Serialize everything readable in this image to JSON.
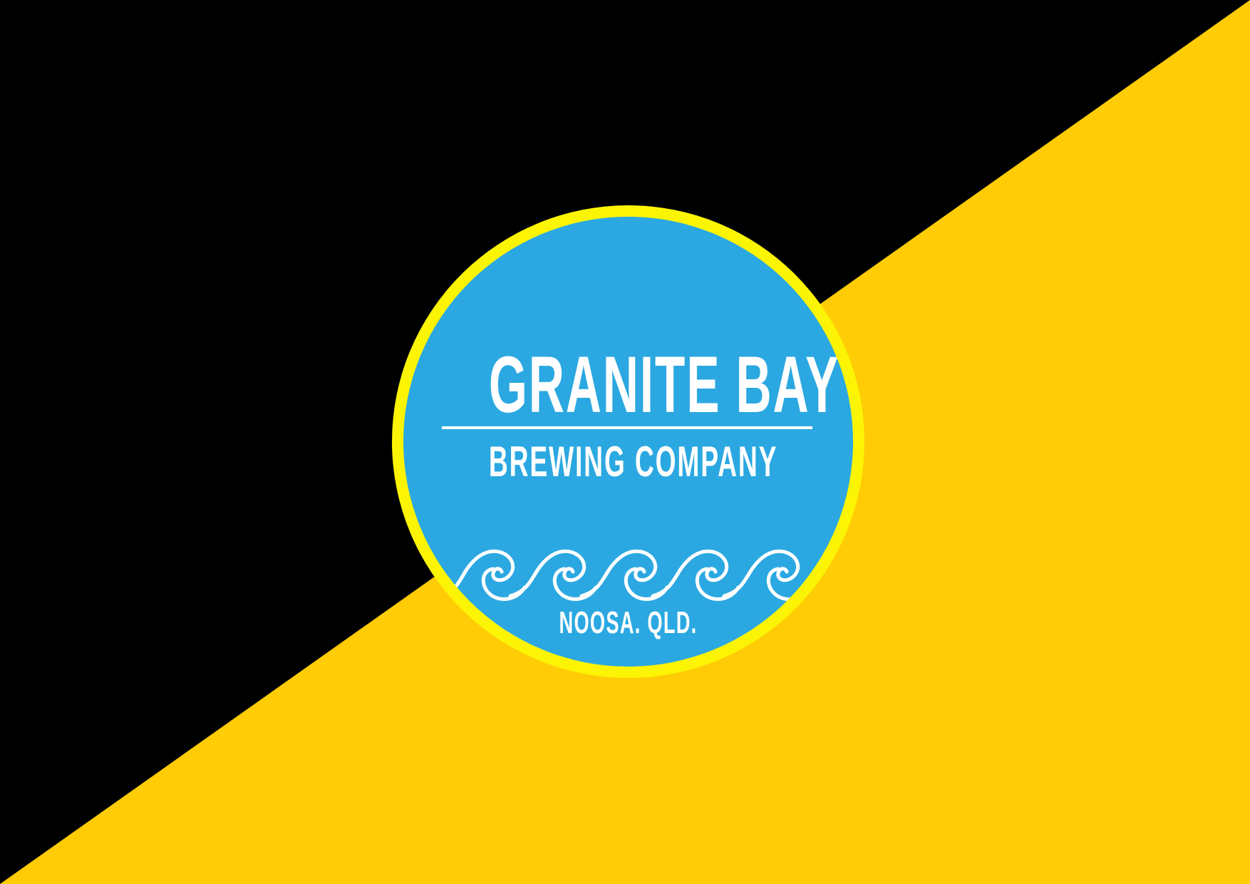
{
  "logo": {
    "title": "GRANITE BAY",
    "subtitle": "BREWING COMPANY",
    "location": "NOOSA. QLD.",
    "icon": "waves-icon"
  },
  "colors": {
    "background_dark": "#000000",
    "background_gold": "#ffcc05",
    "ring": "#fcf405",
    "badge_fill": "#2ba8e1",
    "text": "#ffffff"
  }
}
